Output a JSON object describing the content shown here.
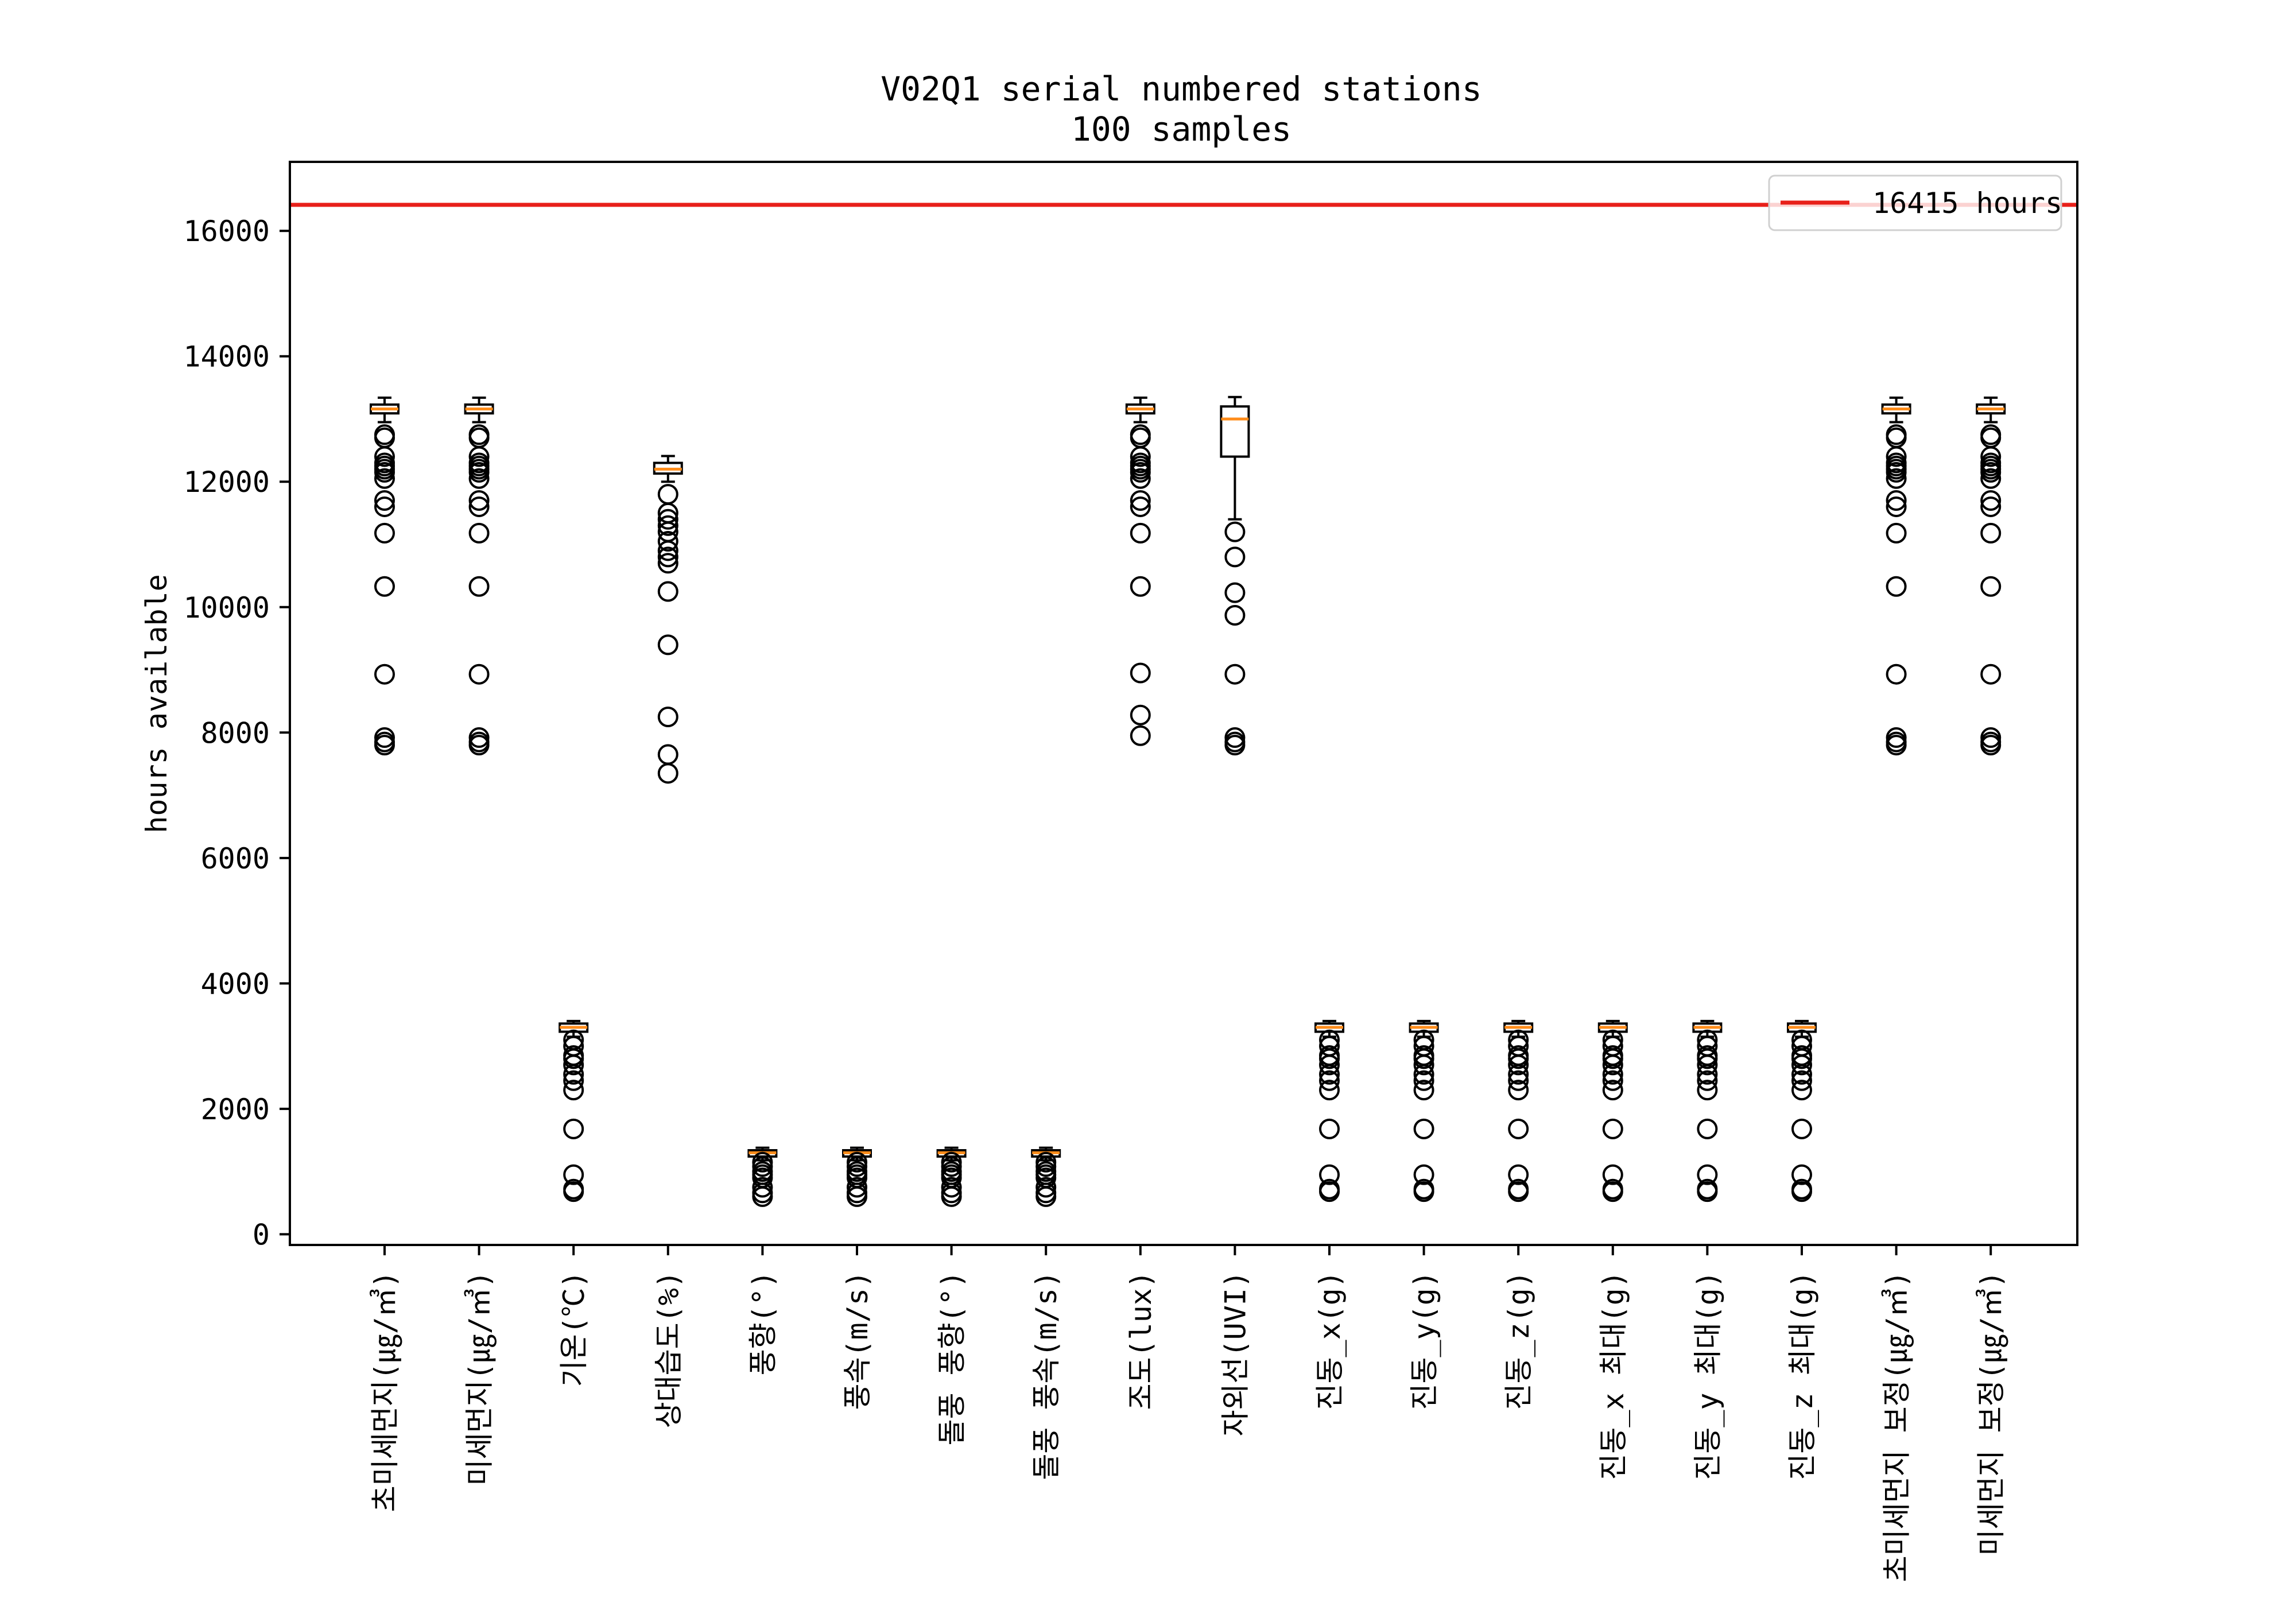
{
  "chart_data": {
    "type": "box",
    "title_line1": "V02Q1 serial numbered stations",
    "title_line2": "100 samples",
    "ylabel": "hours available",
    "ylim": [
      -170,
      17100
    ],
    "yticks": [
      0,
      2000,
      4000,
      6000,
      8000,
      10000,
      12000,
      14000,
      16000
    ],
    "reference_line": {
      "value": 16415,
      "label": "16415 hours",
      "color": "#e8201a"
    },
    "legend_position": "top-right",
    "box_color": "#000000",
    "median_color": "#ff8c1a",
    "categories": [
      "초미세먼지(㎍/㎥)",
      "미세먼지(㎍/㎥)",
      "기온(℃)",
      "상대습도(%)",
      "풍향(°)",
      "풍속(m/s)",
      "돌풍 풍향(°)",
      "돌풍 풍속(m/s)",
      "조도(lux)",
      "자외선(UVI)",
      "진동_x(g)",
      "진동_y(g)",
      "진동_z(g)",
      "진동_x 최대(g)",
      "진동_y 최대(g)",
      "진동_z 최대(g)",
      "초미세먼지 보정(㎍/㎥)",
      "미세먼지 보정(㎍/㎥)"
    ],
    "boxes": [
      {
        "q1": 13090,
        "median": 13160,
        "q3": 13230,
        "whisker_low": 12950,
        "whisker_high": 13340,
        "outliers": [
          12750,
          12700,
          12400,
          12300,
          12250,
          12200,
          12150,
          12050,
          11700,
          11600,
          11180,
          10330,
          8930,
          7920,
          7850,
          7800
        ]
      },
      {
        "q1": 13090,
        "median": 13160,
        "q3": 13230,
        "whisker_low": 12950,
        "whisker_high": 13340,
        "outliers": [
          12750,
          12700,
          12400,
          12300,
          12250,
          12200,
          12150,
          12050,
          11700,
          11600,
          11180,
          10330,
          8930,
          7920,
          7850,
          7800
        ]
      },
      {
        "q1": 3230,
        "median": 3300,
        "q3": 3360,
        "whisker_low": 3150,
        "whisker_high": 3400,
        "outliers": [
          3100,
          3000,
          2850,
          2800,
          2700,
          2550,
          2450,
          2300,
          1680,
          950,
          720,
          680
        ]
      },
      {
        "q1": 12130,
        "median": 12200,
        "q3": 12300,
        "whisker_low": 12000,
        "whisker_high": 12410,
        "outliers": [
          11800,
          11500,
          11400,
          11300,
          11200,
          11050,
          10900,
          10800,
          10700,
          10250,
          9400,
          8250,
          7650,
          7350
        ]
      },
      {
        "q1": 1240,
        "median": 1300,
        "q3": 1340,
        "whisker_low": 1180,
        "whisker_high": 1380,
        "outliers": [
          1150,
          1080,
          1000,
          950,
          900,
          750,
          660,
          600
        ]
      },
      {
        "q1": 1240,
        "median": 1300,
        "q3": 1340,
        "whisker_low": 1180,
        "whisker_high": 1380,
        "outliers": [
          1150,
          1080,
          1000,
          950,
          900,
          750,
          660,
          600
        ]
      },
      {
        "q1": 1240,
        "median": 1300,
        "q3": 1340,
        "whisker_low": 1180,
        "whisker_high": 1380,
        "outliers": [
          1150,
          1080,
          1000,
          950,
          900,
          750,
          660,
          600
        ]
      },
      {
        "q1": 1240,
        "median": 1300,
        "q3": 1340,
        "whisker_low": 1180,
        "whisker_high": 1380,
        "outliers": [
          1150,
          1080,
          1000,
          950,
          900,
          750,
          660,
          600
        ]
      },
      {
        "q1": 13090,
        "median": 13160,
        "q3": 13230,
        "whisker_low": 12950,
        "whisker_high": 13340,
        "outliers": [
          12750,
          12700,
          12400,
          12300,
          12250,
          12200,
          12150,
          12050,
          11700,
          11600,
          11180,
          10330,
          8950,
          8280,
          7950
        ]
      },
      {
        "q1": 12400,
        "median": 13000,
        "q3": 13200,
        "whisker_low": 11400,
        "whisker_high": 13350,
        "outliers": [
          11200,
          10800,
          10230,
          9870,
          8930,
          7920,
          7850,
          7800
        ]
      },
      {
        "q1": 3230,
        "median": 3300,
        "q3": 3360,
        "whisker_low": 3150,
        "whisker_high": 3400,
        "outliers": [
          3100,
          3000,
          2850,
          2800,
          2700,
          2550,
          2450,
          2300,
          1680,
          950,
          720,
          680
        ]
      },
      {
        "q1": 3230,
        "median": 3300,
        "q3": 3360,
        "whisker_low": 3150,
        "whisker_high": 3400,
        "outliers": [
          3100,
          3000,
          2850,
          2800,
          2700,
          2550,
          2450,
          2300,
          1680,
          950,
          720,
          680
        ]
      },
      {
        "q1": 3230,
        "median": 3300,
        "q3": 3360,
        "whisker_low": 3150,
        "whisker_high": 3400,
        "outliers": [
          3100,
          3000,
          2850,
          2800,
          2700,
          2550,
          2450,
          2300,
          1680,
          950,
          720,
          680
        ]
      },
      {
        "q1": 3230,
        "median": 3300,
        "q3": 3360,
        "whisker_low": 3150,
        "whisker_high": 3400,
        "outliers": [
          3100,
          3000,
          2850,
          2800,
          2700,
          2550,
          2450,
          2300,
          1680,
          950,
          720,
          680
        ]
      },
      {
        "q1": 3230,
        "median": 3300,
        "q3": 3360,
        "whisker_low": 3150,
        "whisker_high": 3400,
        "outliers": [
          3100,
          3000,
          2850,
          2800,
          2700,
          2550,
          2450,
          2300,
          1680,
          950,
          720,
          680
        ]
      },
      {
        "q1": 3230,
        "median": 3300,
        "q3": 3360,
        "whisker_low": 3150,
        "whisker_high": 3400,
        "outliers": [
          3100,
          3000,
          2850,
          2800,
          2700,
          2550,
          2450,
          2300,
          1680,
          950,
          720,
          680
        ]
      },
      {
        "q1": 13090,
        "median": 13160,
        "q3": 13230,
        "whisker_low": 12950,
        "whisker_high": 13340,
        "outliers": [
          12750,
          12700,
          12400,
          12300,
          12250,
          12200,
          12150,
          12050,
          11700,
          11600,
          11180,
          10330,
          8930,
          7920,
          7850,
          7800
        ]
      },
      {
        "q1": 13090,
        "median": 13160,
        "q3": 13230,
        "whisker_low": 12950,
        "whisker_high": 13340,
        "outliers": [
          12750,
          12700,
          12400,
          12300,
          12250,
          12200,
          12150,
          12050,
          11700,
          11600,
          11180,
          10330,
          8930,
          7920,
          7850,
          7800
        ]
      }
    ]
  }
}
